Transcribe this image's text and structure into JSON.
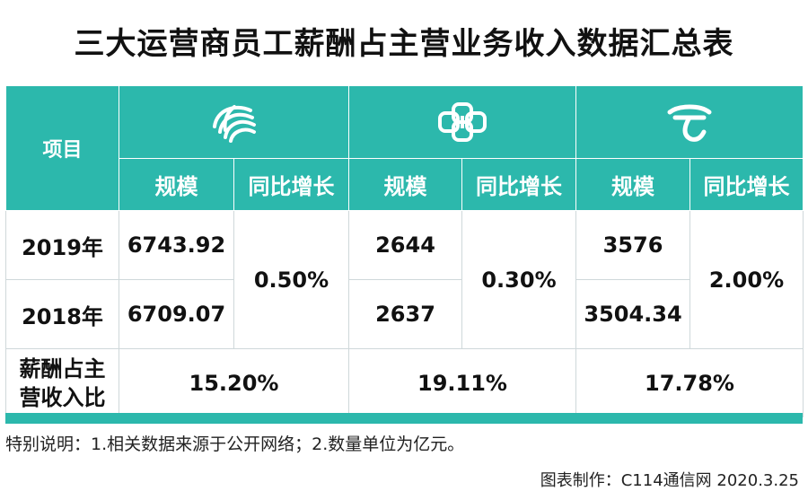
{
  "title": "三大运营商员工薪酬占主营业务收入数据汇总表",
  "header": {
    "item_label": "项目",
    "operators": [
      {
        "logo": "china-mobile-logo",
        "scale_label": "规模",
        "growth_label": "同比增长"
      },
      {
        "logo": "china-unicom-logo",
        "scale_label": "规模",
        "growth_label": "同比增长"
      },
      {
        "logo": "china-telecom-logo",
        "scale_label": "规模",
        "growth_label": "同比增长"
      }
    ]
  },
  "rows": {
    "y2019": {
      "label": "2019年",
      "values": [
        "6743.92",
        "2644",
        "3576"
      ]
    },
    "y2018": {
      "label": "2018年",
      "values": [
        "6709.07",
        "2637",
        "3504.34"
      ]
    },
    "growth": [
      "0.50%",
      "0.30%",
      "2.00%"
    ],
    "ratio": {
      "label_line1": "薪酬占主",
      "label_line2": "营收入比",
      "values": [
        "15.20%",
        "19.11%",
        "17.78%"
      ]
    }
  },
  "note": "特别说明：1.相关数据来源于公开网络；2.数量单位为亿元。",
  "credit": "图表制作：C114通信网 2020.3.25",
  "colors": {
    "accent": "#2cb8ac"
  }
}
